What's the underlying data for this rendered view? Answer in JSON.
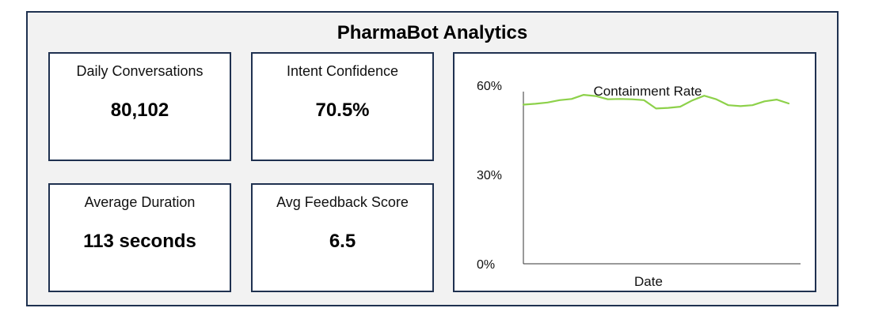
{
  "dashboard": {
    "title": "PharmaBot Analytics",
    "kpis": [
      {
        "label": "Daily Conversations",
        "value": "80,102"
      },
      {
        "label": "Intent Confidence",
        "value": "70.5%"
      },
      {
        "label": "Average Duration",
        "value": "113 seconds"
      },
      {
        "label": "Avg Feedback Score",
        "value": "6.5"
      }
    ]
  },
  "colors": {
    "frame_border": "#1f3150",
    "dashboard_bg": "#f2f2f2",
    "panel_bg": "#ffffff",
    "line": "#8dd14a",
    "axis": "#333333"
  },
  "chart_data": {
    "type": "line",
    "title": "Containment Rate",
    "xlabel": "Date",
    "ylabel": "",
    "ylim": [
      0,
      60
    ],
    "y_ticks": [
      {
        "value": 0,
        "label": "0%"
      },
      {
        "value": 30,
        "label": "30%"
      },
      {
        "value": 60,
        "label": "60%"
      }
    ],
    "grid": false,
    "series": [
      {
        "values": [
          53.5,
          53.8,
          54.2,
          55.0,
          55.4,
          56.8,
          56.4,
          55.3,
          55.4,
          55.3,
          55.0,
          52.2,
          52.4,
          52.8,
          54.9,
          56.5,
          55.3,
          53.3,
          53.0,
          53.3,
          54.6,
          55.2,
          53.9
        ]
      }
    ]
  }
}
